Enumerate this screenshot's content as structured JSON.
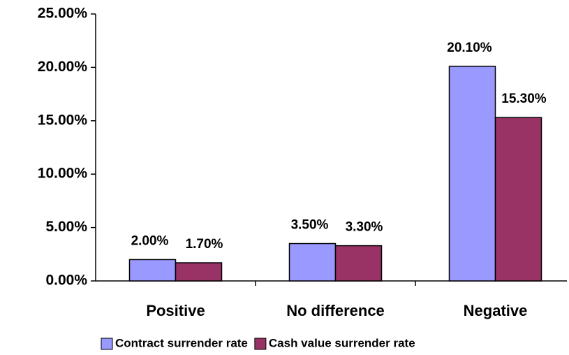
{
  "chart_data": {
    "type": "bar",
    "categories": [
      "Positive",
      "No difference",
      "Negative"
    ],
    "series": [
      {
        "name": "Contract surrender rate",
        "color": "#9999ff",
        "values": [
          2.0,
          3.5,
          20.1
        ],
        "value_labels": [
          "2.00%",
          "3.50%",
          "20.10%"
        ]
      },
      {
        "name": "Cash value surrender rate",
        "color": "#993366",
        "values": [
          1.7,
          3.3,
          15.3
        ],
        "value_labels": [
          "1.70%",
          "3.30%",
          "15.30%"
        ]
      }
    ],
    "ylim": [
      0,
      25
    ],
    "yticks": [
      {
        "value": 0,
        "label": "0.00%"
      },
      {
        "value": 5,
        "label": "5.00%"
      },
      {
        "value": 10,
        "label": "10.00%"
      },
      {
        "value": 15,
        "label": "15.00%"
      },
      {
        "value": 20,
        "label": "20.00%"
      },
      {
        "value": 25,
        "label": "25.00%"
      }
    ],
    "legend": "bottom"
  }
}
